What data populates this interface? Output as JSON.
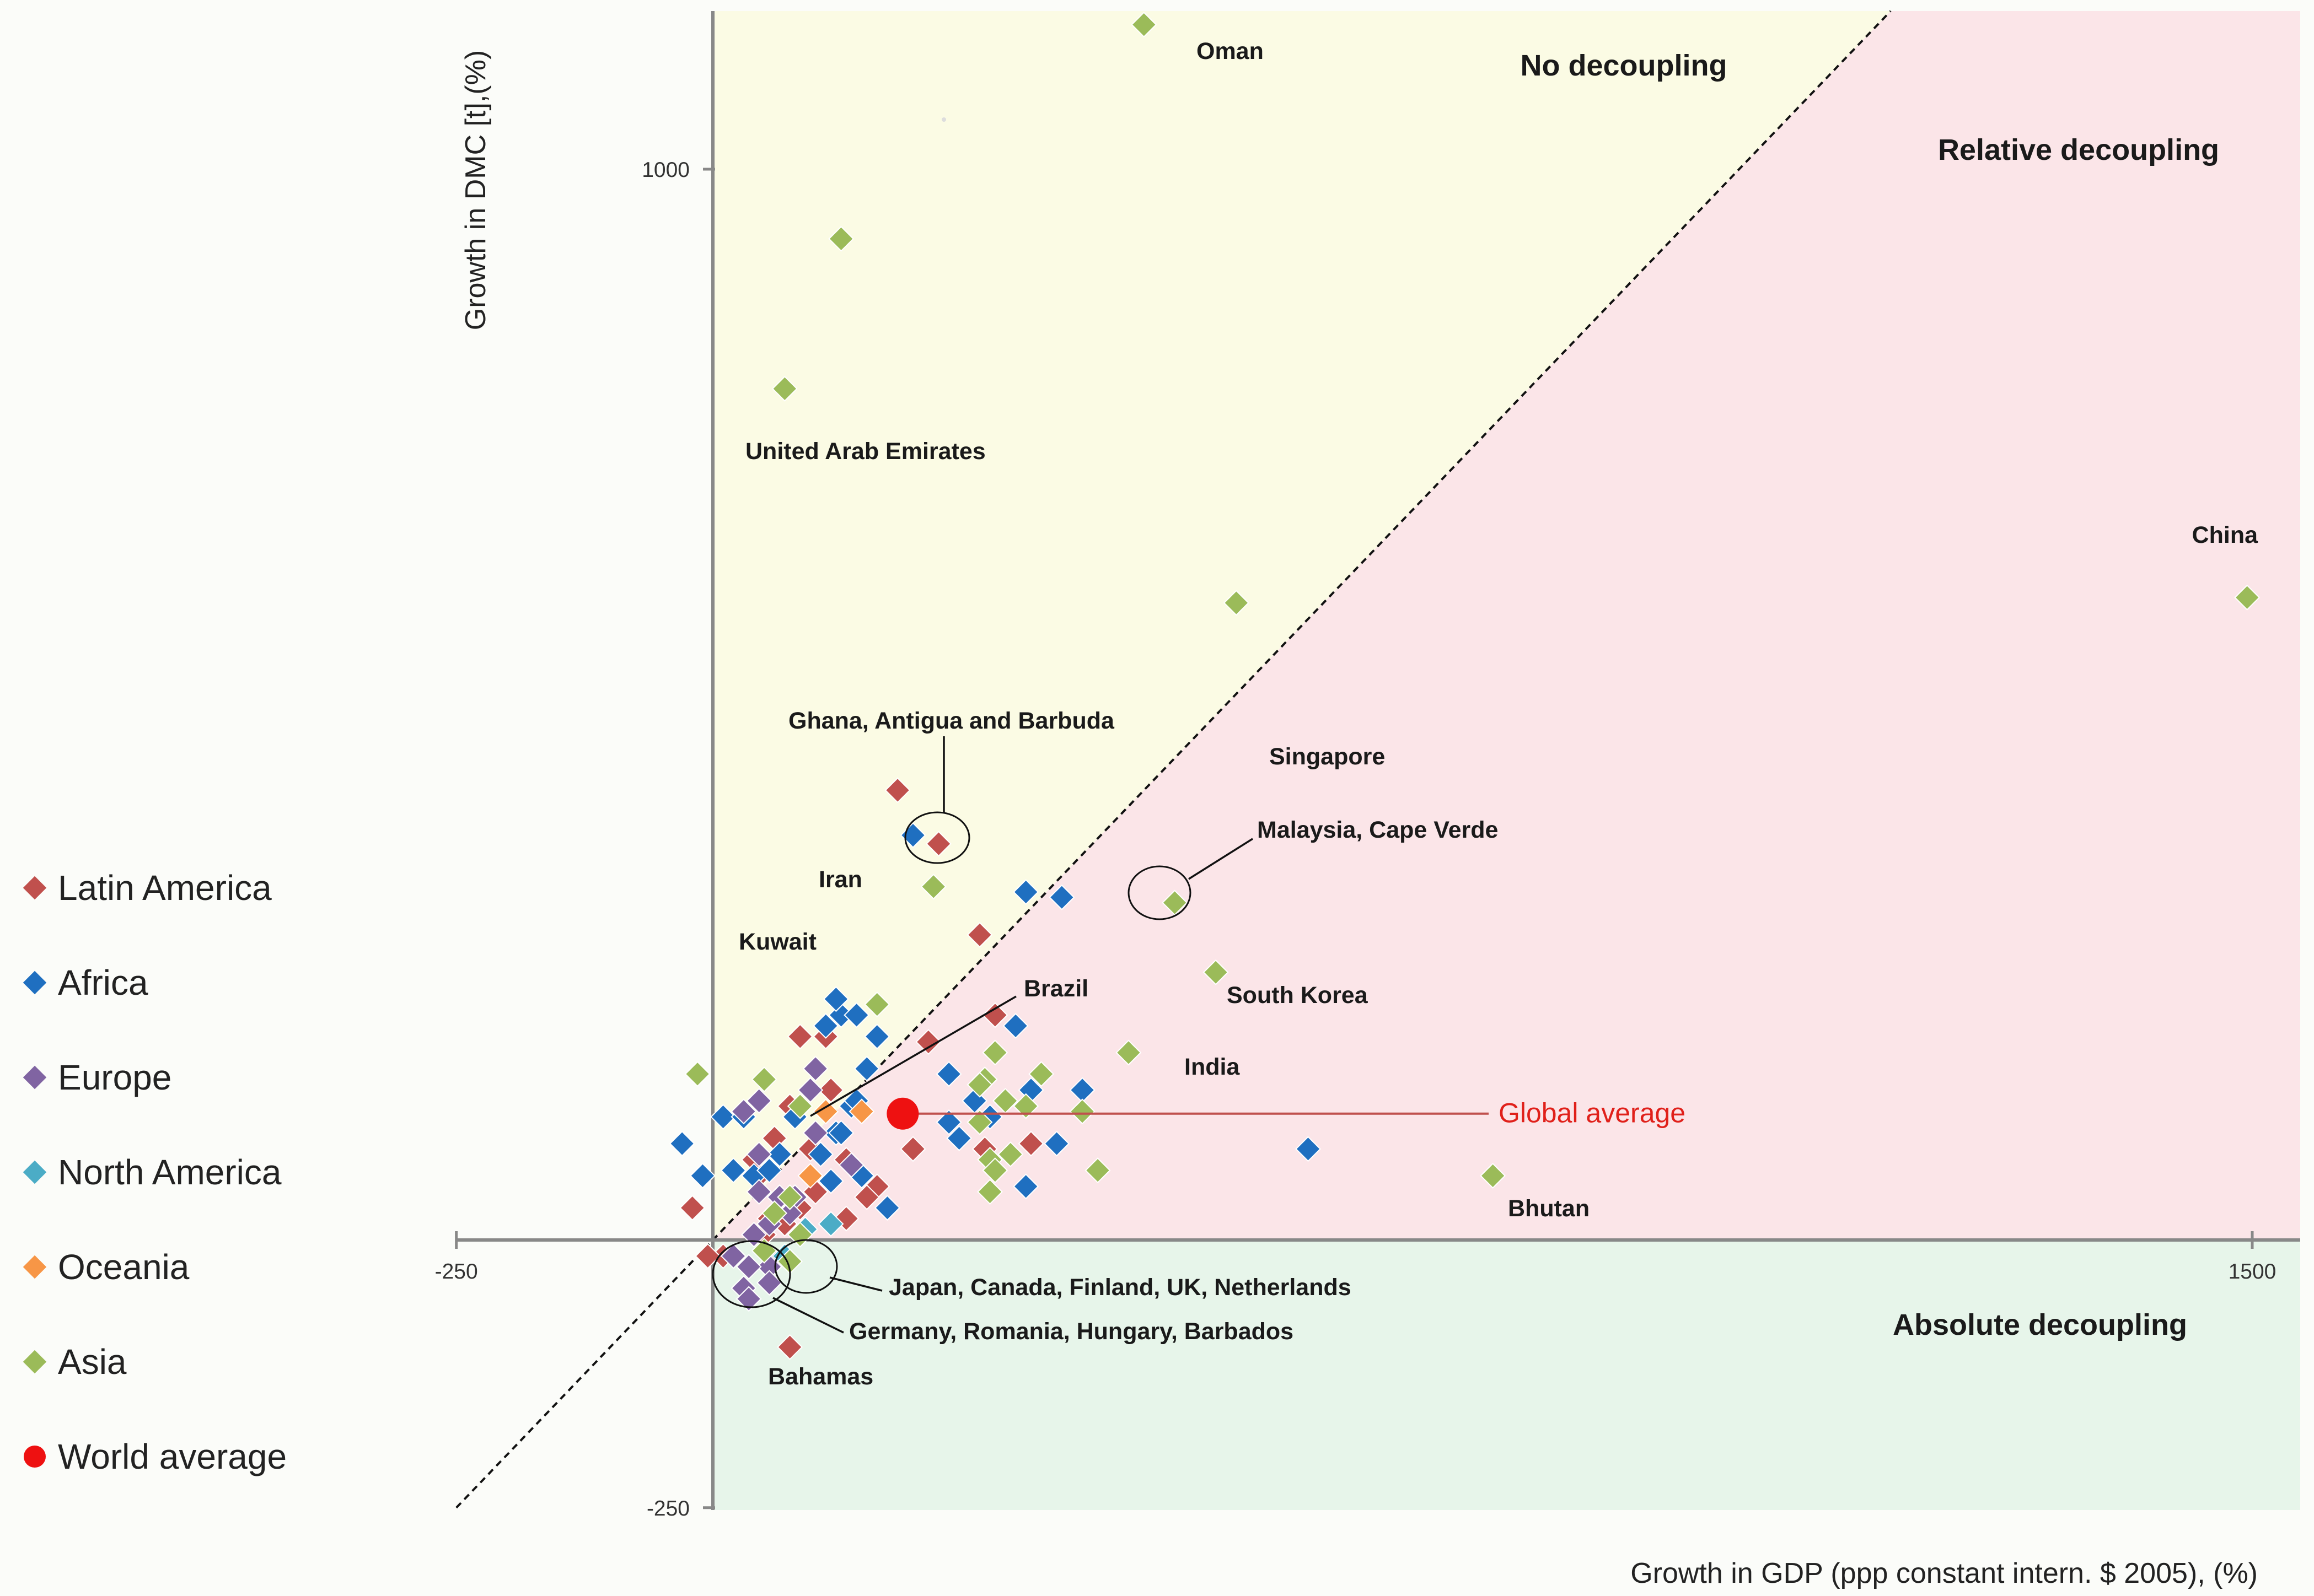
{
  "chart_data": {
    "type": "scatter",
    "title": "",
    "xlabel": "Growth in GDP (ppp constant intern. $ 2005), (%)",
    "ylabel": "Growth in DMC [t],(%)",
    "xlim": [
      -250,
      1550
    ],
    "ylim": [
      -250,
      1150
    ],
    "x_ticks": [
      {
        "value": -250,
        "label": "-250"
      },
      {
        "value": 1500,
        "label": "1500"
      }
    ],
    "y_ticks": [
      {
        "value": 1000,
        "label": "1000"
      },
      {
        "value": -250,
        "label": "-250"
      }
    ],
    "regions": {
      "no_decoupling": "No decoupling",
      "relative_decoupling": "Relative decoupling",
      "absolute_decoupling": "Absolute decoupling"
    },
    "colors": {
      "no_decoupling": "#fbfbe4",
      "relative_decoupling": "#fbe5e8",
      "absolute_decoupling": "#e7f5ea",
      "Latin America": "#c0504d",
      "Africa": "#1f6fc0",
      "Europe": "#8064a2",
      "North America": "#4bacc6",
      "Oceania": "#f79646",
      "Asia": "#9bbb59",
      "World average": "#ee1111"
    },
    "legend": [
      "Latin America",
      "Africa",
      "Europe",
      "North America",
      "Oceania",
      "Asia",
      "World average"
    ],
    "global_average": {
      "label": "Global  average",
      "x": 185,
      "y": 118
    },
    "series": [
      {
        "name": "Latin America",
        "points": [
          [
            220,
            370
          ],
          [
            -20,
            30
          ],
          [
            45,
            60
          ],
          [
            60,
            95
          ],
          [
            95,
            85
          ],
          [
            100,
            45
          ],
          [
            180,
            420
          ],
          [
            260,
            285
          ],
          [
            265,
            85
          ],
          [
            85,
            190
          ],
          [
            110,
            190
          ],
          [
            115,
            140
          ],
          [
            75,
            125
          ],
          [
            195,
            85
          ],
          [
            160,
            50
          ],
          [
            150,
            40
          ],
          [
            130,
            20
          ],
          [
            85,
            30
          ],
          [
            70,
            15
          ],
          [
            50,
            5
          ],
          [
            40,
            75
          ],
          [
            55,
            20
          ],
          [
            10,
            -15
          ],
          [
            -5,
            -15
          ],
          [
            75,
            -100
          ],
          [
            275,
            210
          ],
          [
            310,
            90
          ],
          [
            210,
            185
          ],
          [
            130,
            75
          ]
        ]
      },
      {
        "name": "Africa",
        "points": [
          [
            195,
            378
          ],
          [
            305,
            325
          ],
          [
            340,
            320
          ],
          [
            580,
            85
          ],
          [
            -30,
            90
          ],
          [
            -10,
            60
          ],
          [
            10,
            115
          ],
          [
            30,
            115
          ],
          [
            125,
            210
          ],
          [
            150,
            160
          ],
          [
            160,
            190
          ],
          [
            110,
            200
          ],
          [
            140,
            210
          ],
          [
            120,
            225
          ],
          [
            120,
            100
          ],
          [
            125,
            100
          ],
          [
            135,
            125
          ],
          [
            140,
            130
          ],
          [
            170,
            30
          ],
          [
            230,
            110
          ],
          [
            230,
            155
          ],
          [
            240,
            95
          ],
          [
            255,
            130
          ],
          [
            270,
            115
          ],
          [
            310,
            140
          ],
          [
            305,
            50
          ],
          [
            335,
            90
          ],
          [
            360,
            140
          ],
          [
            295,
            200
          ],
          [
            20,
            65
          ],
          [
            40,
            60
          ],
          [
            55,
            65
          ],
          [
            65,
            80
          ],
          [
            80,
            115
          ],
          [
            100,
            100
          ],
          [
            105,
            80
          ],
          [
            115,
            55
          ],
          [
            145,
            60
          ]
        ]
      },
      {
        "name": "Europe",
        "points": [
          [
            100,
            160
          ],
          [
            95,
            140
          ],
          [
            45,
            130
          ],
          [
            30,
            120
          ],
          [
            100,
            100
          ],
          [
            45,
            80
          ],
          [
            135,
            70
          ],
          [
            45,
            45
          ],
          [
            65,
            40
          ],
          [
            80,
            40
          ],
          [
            75,
            25
          ],
          [
            55,
            15
          ],
          [
            40,
            5
          ],
          [
            20,
            -15
          ],
          [
            60,
            -20
          ],
          [
            55,
            -25
          ],
          [
            35,
            -25
          ],
          [
            30,
            -45
          ],
          [
            35,
            -55
          ],
          [
            55,
            -40
          ]
        ]
      },
      {
        "name": "North America",
        "points": [
          [
            90,
            10
          ],
          [
            115,
            15
          ],
          [
            70,
            -15
          ]
        ]
      },
      {
        "name": "Oceania",
        "points": [
          [
            95,
            60
          ],
          [
            110,
            120
          ],
          [
            145,
            120
          ]
        ]
      },
      {
        "name": "Asia",
        "points": [
          [
            125,
            935
          ],
          [
            70,
            795
          ],
          [
            420,
            1135
          ],
          [
            1495,
            600
          ],
          [
            510,
            595
          ],
          [
            215,
            330
          ],
          [
            160,
            220
          ],
          [
            450,
            315
          ],
          [
            490,
            250
          ],
          [
            405,
            175
          ],
          [
            275,
            175
          ],
          [
            320,
            155
          ],
          [
            265,
            150
          ],
          [
            285,
            130
          ],
          [
            360,
            120
          ],
          [
            375,
            65
          ],
          [
            260,
            110
          ],
          [
            260,
            145
          ],
          [
            270,
            75
          ],
          [
            50,
            150
          ],
          [
            85,
            125
          ],
          [
            -15,
            155
          ],
          [
            760,
            60
          ],
          [
            305,
            125
          ],
          [
            290,
            80
          ],
          [
            275,
            65
          ],
          [
            75,
            40
          ],
          [
            60,
            25
          ],
          [
            50,
            -10
          ],
          [
            75,
            -20
          ],
          [
            85,
            5
          ],
          [
            270,
            45
          ]
        ]
      }
    ],
    "annotations": [
      {
        "label": "Oman"
      },
      {
        "label": "United Arab Emirates"
      },
      {
        "label": "China"
      },
      {
        "label": "Singapore"
      },
      {
        "label": "Ghana, Antigua and Barbuda"
      },
      {
        "label": "Malaysia, Cape Verde"
      },
      {
        "label": "Iran"
      },
      {
        "label": "Kuwait"
      },
      {
        "label": "Brazil"
      },
      {
        "label": "South Korea"
      },
      {
        "label": "India"
      },
      {
        "label": "Bhutan"
      },
      {
        "label": "Japan, Canada, Finland, UK, Netherlands"
      },
      {
        "label": "Germany, Romania, Hungary, Barbados"
      },
      {
        "label": "Bahamas"
      }
    ]
  }
}
